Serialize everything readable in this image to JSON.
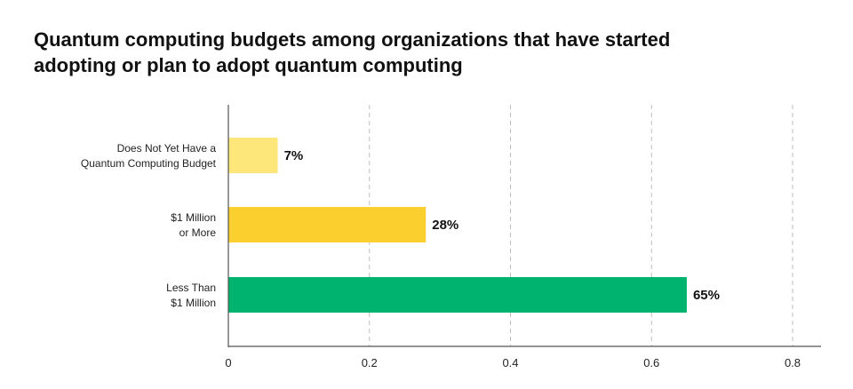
{
  "title_lines": [
    "Quantum computing budgets among organizations that have started",
    "adopting or plan to adopt quantum computing"
  ],
  "chart_data": {
    "type": "bar",
    "orientation": "horizontal",
    "title": "Quantum computing budgets among organizations that have started adopting or plan to adopt quantum computing",
    "categories": [
      [
        "Does Not Yet Have a",
        "Quantum Computing Budget"
      ],
      [
        "$1 Million",
        "or More"
      ],
      [
        "Less Than",
        "$1 Million"
      ]
    ],
    "values": [
      0.07,
      0.28,
      0.65
    ],
    "value_labels": [
      "7%",
      "28%",
      "65%"
    ],
    "colors": [
      "#fde77a",
      "#fbcf2d",
      "#00b36e"
    ],
    "xlim": [
      0,
      0.8
    ],
    "x_ticks": [
      0,
      0.2,
      0.4,
      0.6,
      0.8
    ],
    "x_tick_labels": [
      "0",
      "0.2",
      "0.4",
      "0.6",
      "0.8"
    ],
    "grid": "vertical dashed",
    "xlabel": "",
    "ylabel": ""
  }
}
